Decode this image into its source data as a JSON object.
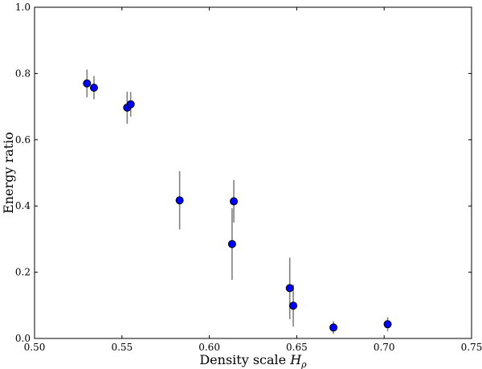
{
  "chart_data": {
    "type": "scatter",
    "title": "",
    "xlabel": "Density scale",
    "xlabel_symbol": "H",
    "xlabel_subscript": "ρ",
    "ylabel": "Energy ratio",
    "xlim": [
      0.5,
      0.75
    ],
    "ylim": [
      0.0,
      1.0
    ],
    "xticks": [
      "0.50",
      "0.55",
      "0.60",
      "0.65",
      "0.70",
      "0.75"
    ],
    "yticks": [
      "0.0",
      "0.2",
      "0.4",
      "0.6",
      "0.8",
      "1.0"
    ],
    "grid": false,
    "legend": "none",
    "marker_color": "#0000ff",
    "errorbar_color": "#808080",
    "points": [
      {
        "x": 0.53,
        "y": 0.77,
        "ylo": 0.728,
        "yhi": 0.812
      },
      {
        "x": 0.534,
        "y": 0.757,
        "ylo": 0.722,
        "yhi": 0.792
      },
      {
        "x": 0.553,
        "y": 0.697,
        "ylo": 0.648,
        "yhi": 0.745
      },
      {
        "x": 0.555,
        "y": 0.707,
        "ylo": 0.67,
        "yhi": 0.744
      },
      {
        "x": 0.583,
        "y": 0.417,
        "ylo": 0.329,
        "yhi": 0.505
      },
      {
        "x": 0.613,
        "y": 0.285,
        "ylo": 0.177,
        "yhi": 0.393
      },
      {
        "x": 0.614,
        "y": 0.414,
        "ylo": 0.35,
        "yhi": 0.478
      },
      {
        "x": 0.646,
        "y": 0.152,
        "ylo": 0.058,
        "yhi": 0.244
      },
      {
        "x": 0.648,
        "y": 0.099,
        "ylo": 0.036,
        "yhi": 0.163
      },
      {
        "x": 0.671,
        "y": 0.033,
        "ylo": 0.014,
        "yhi": 0.052
      },
      {
        "x": 0.702,
        "y": 0.043,
        "ylo": 0.022,
        "yhi": 0.064
      }
    ]
  }
}
